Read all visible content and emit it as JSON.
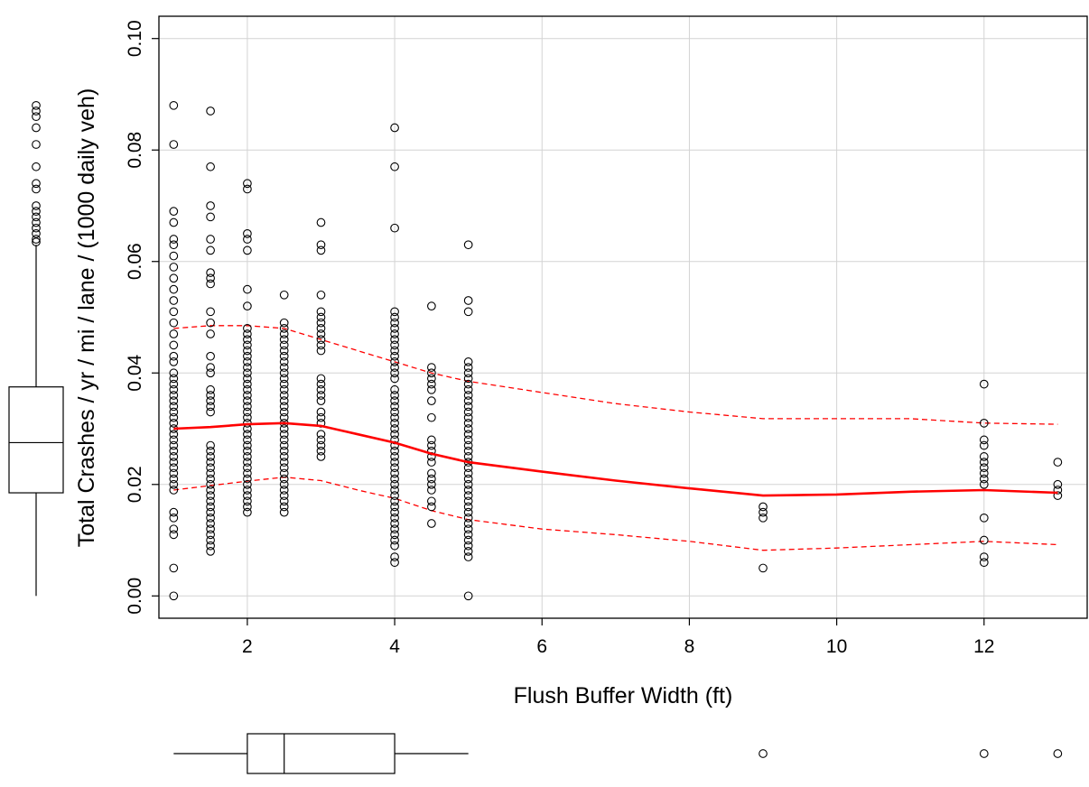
{
  "chart_data": {
    "type": "scatter",
    "xlabel": "Flush Buffer Width (ft)",
    "ylabel": "Total Crashes / yr / mi / lane / (1000 daily veh)",
    "xlim": [
      0.8,
      13.4
    ],
    "ylim": [
      -0.004,
      0.104
    ],
    "x_ticks": [
      2,
      4,
      6,
      8,
      10,
      12
    ],
    "y_ticks": [
      0.0,
      0.02,
      0.04,
      0.06,
      0.08,
      0.1
    ],
    "x_tick_labels": [
      "2",
      "4",
      "6",
      "8",
      "10",
      "12"
    ],
    "y_tick_labels": [
      "0.00",
      "0.02",
      "0.04",
      "0.06",
      "0.08",
      "0.10"
    ],
    "grid": true,
    "colors": {
      "points": "#000000",
      "smooth": "#ff0000",
      "grid": "#d3d3d3"
    },
    "points": [
      {
        "x": 1,
        "y": [
          0.088,
          0.081,
          0.069,
          0.067,
          0.064,
          0.063,
          0.061,
          0.059,
          0.057,
          0.055,
          0.053,
          0.051,
          0.049,
          0.047,
          0.045,
          0.043,
          0.042,
          0.04,
          0.039,
          0.038,
          0.037,
          0.036,
          0.035,
          0.034,
          0.033,
          0.032,
          0.031,
          0.03,
          0.029,
          0.028,
          0.027,
          0.026,
          0.025,
          0.024,
          0.023,
          0.022,
          0.021,
          0.02,
          0.019,
          0.015,
          0.014,
          0.012,
          0.011,
          0.005,
          0.0
        ]
      },
      {
        "x": 1.5,
        "y": [
          0.087,
          0.077,
          0.07,
          0.068,
          0.064,
          0.062,
          0.058,
          0.057,
          0.056,
          0.051,
          0.049,
          0.047,
          0.043,
          0.041,
          0.04,
          0.037,
          0.036,
          0.035,
          0.034,
          0.033,
          0.027,
          0.026,
          0.025,
          0.024,
          0.023,
          0.022,
          0.021,
          0.02,
          0.019,
          0.018,
          0.017,
          0.016,
          0.015,
          0.014,
          0.013,
          0.012,
          0.011,
          0.01,
          0.009,
          0.008
        ]
      },
      {
        "x": 2,
        "y": [
          0.074,
          0.073,
          0.065,
          0.064,
          0.062,
          0.055,
          0.052,
          0.048,
          0.047,
          0.046,
          0.045,
          0.044,
          0.043,
          0.042,
          0.041,
          0.04,
          0.039,
          0.038,
          0.037,
          0.036,
          0.035,
          0.034,
          0.033,
          0.032,
          0.031,
          0.03,
          0.029,
          0.028,
          0.027,
          0.026,
          0.025,
          0.024,
          0.023,
          0.022,
          0.021,
          0.02,
          0.019,
          0.018,
          0.017,
          0.016,
          0.015
        ]
      },
      {
        "x": 2.5,
        "y": [
          0.054,
          0.049,
          0.048,
          0.047,
          0.046,
          0.045,
          0.044,
          0.043,
          0.042,
          0.041,
          0.04,
          0.039,
          0.038,
          0.037,
          0.036,
          0.035,
          0.034,
          0.033,
          0.032,
          0.031,
          0.03,
          0.029,
          0.028,
          0.027,
          0.026,
          0.025,
          0.024,
          0.023,
          0.022,
          0.021,
          0.02,
          0.019,
          0.018,
          0.017,
          0.016,
          0.015
        ]
      },
      {
        "x": 3,
        "y": [
          0.067,
          0.063,
          0.062,
          0.054,
          0.051,
          0.05,
          0.049,
          0.048,
          0.047,
          0.046,
          0.045,
          0.044,
          0.039,
          0.038,
          0.037,
          0.036,
          0.035,
          0.033,
          0.032,
          0.031,
          0.029,
          0.028,
          0.027,
          0.026,
          0.025
        ]
      },
      {
        "x": 4,
        "y": [
          0.084,
          0.077,
          0.066,
          0.051,
          0.05,
          0.049,
          0.048,
          0.047,
          0.046,
          0.045,
          0.044,
          0.043,
          0.042,
          0.041,
          0.04,
          0.039,
          0.037,
          0.036,
          0.035,
          0.034,
          0.033,
          0.032,
          0.031,
          0.03,
          0.029,
          0.028,
          0.027,
          0.026,
          0.025,
          0.024,
          0.023,
          0.022,
          0.021,
          0.02,
          0.019,
          0.018,
          0.017,
          0.016,
          0.015,
          0.014,
          0.013,
          0.012,
          0.011,
          0.01,
          0.009,
          0.007,
          0.006
        ]
      },
      {
        "x": 4.5,
        "y": [
          0.052,
          0.041,
          0.04,
          0.039,
          0.038,
          0.037,
          0.035,
          0.032,
          0.028,
          0.027,
          0.026,
          0.025,
          0.024,
          0.022,
          0.021,
          0.02,
          0.019,
          0.017,
          0.016,
          0.013
        ]
      },
      {
        "x": 5,
        "y": [
          0.063,
          0.053,
          0.051,
          0.042,
          0.041,
          0.04,
          0.039,
          0.038,
          0.037,
          0.036,
          0.035,
          0.034,
          0.033,
          0.032,
          0.031,
          0.03,
          0.029,
          0.028,
          0.027,
          0.026,
          0.025,
          0.024,
          0.023,
          0.022,
          0.021,
          0.02,
          0.019,
          0.018,
          0.017,
          0.016,
          0.015,
          0.014,
          0.013,
          0.012,
          0.011,
          0.01,
          0.009,
          0.008,
          0.007,
          0.0
        ]
      },
      {
        "x": 9,
        "y": [
          0.016,
          0.015,
          0.014,
          0.005
        ]
      },
      {
        "x": 12,
        "y": [
          0.038,
          0.031,
          0.028,
          0.027,
          0.025,
          0.024,
          0.023,
          0.022,
          0.021,
          0.02,
          0.014,
          0.01,
          0.007,
          0.006
        ]
      },
      {
        "x": 13,
        "y": [
          0.024,
          0.02,
          0.019,
          0.018
        ]
      }
    ],
    "smooth": {
      "x": [
        1,
        1.5,
        2,
        2.5,
        3,
        3.5,
        4,
        4.5,
        5,
        6,
        7,
        8,
        9,
        10,
        11,
        12,
        13
      ],
      "fit": [
        0.03,
        0.0303,
        0.0308,
        0.031,
        0.0305,
        0.029,
        0.0275,
        0.0255,
        0.024,
        0.0223,
        0.0207,
        0.0193,
        0.018,
        0.0182,
        0.0187,
        0.019,
        0.0185
      ],
      "upper": [
        0.048,
        0.0485,
        0.0485,
        0.048,
        0.046,
        0.044,
        0.042,
        0.04,
        0.0385,
        0.0365,
        0.0345,
        0.033,
        0.0318,
        0.0318,
        0.0318,
        0.031,
        0.0308
      ],
      "lower": [
        0.019,
        0.0198,
        0.0206,
        0.0213,
        0.0207,
        0.019,
        0.0175,
        0.0153,
        0.0137,
        0.012,
        0.011,
        0.0098,
        0.0082,
        0.0086,
        0.0092,
        0.0098,
        0.0092
      ]
    },
    "x_boxplot": {
      "min": 1,
      "q1": 2,
      "median": 2.5,
      "q3": 4,
      "max": 5,
      "outliers": [
        9,
        12,
        13
      ]
    },
    "y_boxplot": {
      "min": 0.0,
      "q1": 0.0185,
      "median": 0.0275,
      "q3": 0.0375,
      "max": 0.063,
      "outliers": [
        0.0635,
        0.064,
        0.065,
        0.066,
        0.067,
        0.068,
        0.069,
        0.07,
        0.073,
        0.074,
        0.077,
        0.081,
        0.084,
        0.086,
        0.087,
        0.088
      ]
    }
  }
}
